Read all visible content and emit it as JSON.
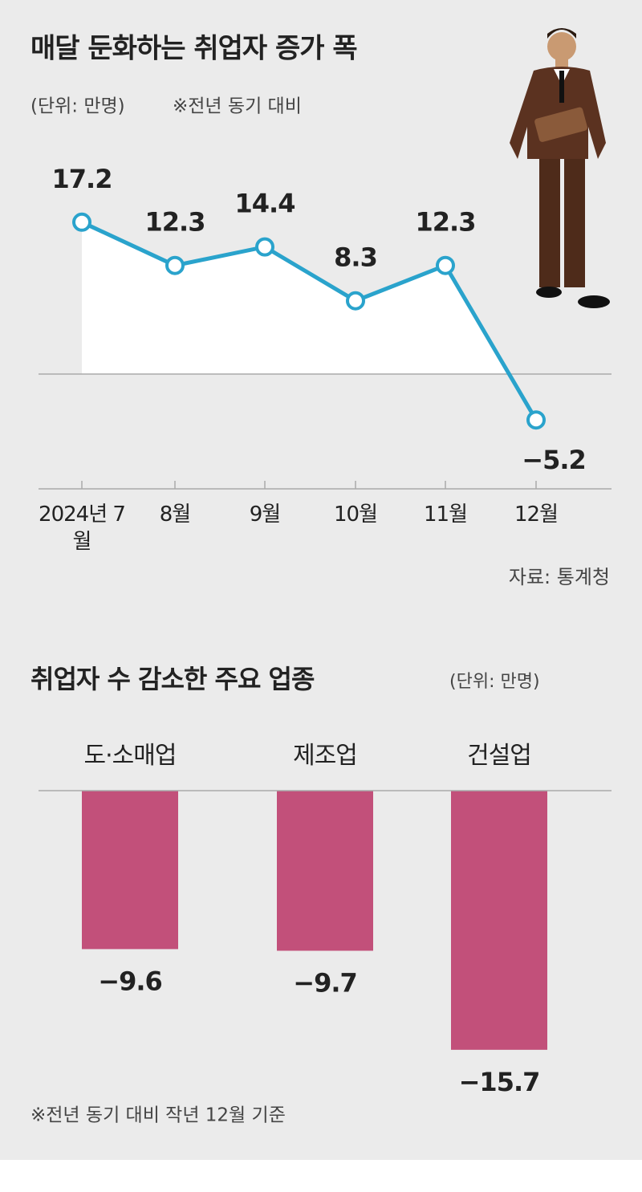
{
  "chart_data": [
    {
      "type": "line",
      "title": "매달 둔화하는 취업자 증가 폭",
      "unit": "(단위: 만명)",
      "note": "※전년 동기 대비",
      "categories": [
        "2024년 7월",
        "8월",
        "9월",
        "10월",
        "11월",
        "12월"
      ],
      "values": [
        17.2,
        12.3,
        14.4,
        8.3,
        12.3,
        -5.2
      ],
      "value_labels": [
        "17.2",
        "12.3",
        "14.4",
        "8.3",
        "12.3",
        "−5.2"
      ],
      "color": "#2aa3cc",
      "ylim": [
        -13,
        20
      ],
      "source": "자료: 통계청"
    },
    {
      "type": "bar",
      "title": "취업자 수 감소한 주요 업종",
      "unit": "(단위: 만명)",
      "categories": [
        "도·소매업",
        "제조업",
        "건설업"
      ],
      "values": [
        -9.6,
        -9.7,
        -15.7
      ],
      "value_labels": [
        "−9.6",
        "−9.7",
        "−15.7"
      ],
      "color": "#c2507a",
      "ylim": [
        -16,
        0
      ],
      "note": "※전년 동기 대비 작년 12월 기준"
    }
  ]
}
